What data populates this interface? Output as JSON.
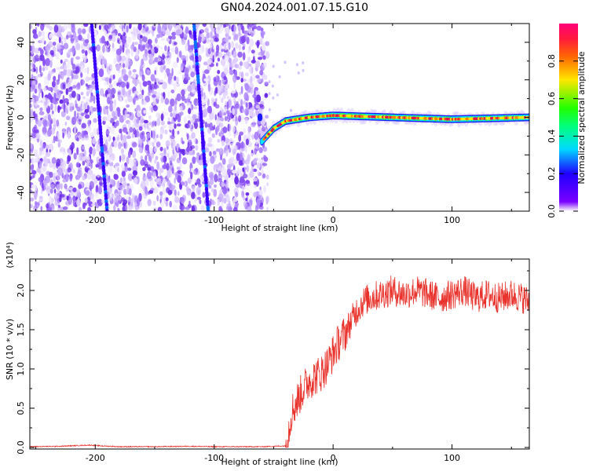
{
  "title": "GN04.2024.001.07.15.G10",
  "colors": {
    "snr_line": "#e8322b",
    "spectrogram_low": "#7b2ff7",
    "spectrogram_band_edge": "#00c8ff",
    "spectrogram_core": "#e0164a"
  },
  "chart_data": [
    {
      "type": "heatmap",
      "title": "",
      "xlabel": "Height of straight line (km)",
      "ylabel": "Frequency (Hz)",
      "xlim": [
        -255,
        165
      ],
      "ylim": [
        -50,
        50
      ],
      "x_ticks": [
        -200,
        -100,
        0,
        100
      ],
      "y_ticks": [
        -40,
        -20,
        0,
        20,
        40
      ],
      "colorbar": {
        "label": "Normalized spectral amplitude",
        "range": [
          0.0,
          1.0
        ],
        "ticks": [
          "0.0",
          "0.2",
          "0.4",
          "0.6",
          "0.8"
        ],
        "colormap": "rainbow (violet-blue-cyan-green-yellow-orange-red-magenta)"
      },
      "features": [
        {
          "name": "noise_region",
          "x_range": [
            -255,
            -55
          ],
          "level": "low (0.0-0.2)"
        },
        {
          "name": "diagonal_streak",
          "x_start": -203,
          "y_start": 50,
          "x_end": -190,
          "y_end": -50,
          "level": 0.2
        },
        {
          "name": "diagonal_streak",
          "x_start": -117,
          "y_start": 50,
          "x_end": -105,
          "y_end": -50,
          "level": 0.2
        },
        {
          "name": "signal_band",
          "points": [
            [
              -60,
              -13
            ],
            [
              -50,
              -6
            ],
            [
              -40,
              -2
            ],
            [
              -20,
              0
            ],
            [
              0,
              1
            ],
            [
              50,
              0
            ],
            [
              100,
              -1
            ],
            [
              165,
              0
            ]
          ],
          "level": "0.8-1.0"
        }
      ]
    },
    {
      "type": "line",
      "title": "",
      "xlabel": "Height of straight line (km)",
      "ylabel": "SNR (10 * v/v)",
      "y_multiplier": "(x10⁴)",
      "xlim": [
        -255,
        165
      ],
      "ylim": [
        -0.02,
        2.4
      ],
      "x_ticks": [
        -200,
        -100,
        0,
        100
      ],
      "y_ticks": [
        "0.0",
        "0.5",
        "1.0",
        "1.5",
        "2.0"
      ],
      "series": [
        {
          "x": [
            -255,
            -230,
            -205,
            -195,
            -180,
            -150,
            -120,
            -100,
            -80,
            -60,
            -40,
            -38,
            -35,
            -30,
            -25,
            -20,
            -15,
            -10,
            -5,
            0,
            5,
            10,
            15,
            20,
            25,
            30,
            40,
            50,
            60,
            70,
            80,
            90,
            100,
            110,
            120,
            130,
            140,
            150,
            160,
            165
          ],
          "y": [
            0.01,
            0.015,
            0.03,
            0.02,
            0.01,
            0.01,
            0.015,
            0.01,
            0.01,
            0.01,
            0.02,
            0.15,
            0.45,
            0.6,
            0.75,
            0.85,
            0.9,
            0.95,
            1.05,
            1.2,
            1.35,
            1.45,
            1.6,
            1.75,
            1.85,
            1.9,
            1.95,
            2.0,
            1.95,
            2.0,
            1.95,
            1.9,
            1.95,
            2.0,
            1.9,
            1.95,
            1.9,
            1.95,
            1.9,
            1.85
          ]
        }
      ]
    }
  ]
}
